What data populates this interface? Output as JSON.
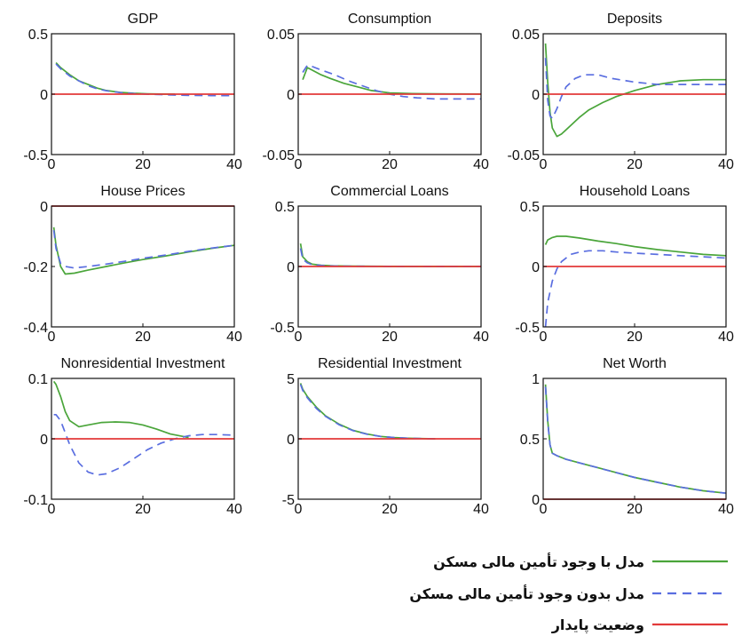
{
  "colors": {
    "with_housing_finance": "#4aa53a",
    "without_housing_finance": "#5a6ee0",
    "steady_state": "#e23a3a",
    "axis": "#111111"
  },
  "legend": {
    "placement": "bottom-right",
    "items": [
      {
        "label": "مدل با وجود تأمین مالی مسکن",
        "style": "solid",
        "color_key": "with_housing_finance"
      },
      {
        "label": "مدل بدون وجود تأمین مالی مسکن",
        "style": "dashed",
        "color_key": "without_housing_finance"
      },
      {
        "label": "وضعیت پایدار",
        "style": "solid",
        "color_key": "steady_state"
      }
    ]
  },
  "chart_data": [
    {
      "type": "line",
      "title": "GDP",
      "xlim": [
        0,
        40
      ],
      "ylim": [
        -0.5,
        0.5
      ],
      "xticks": [
        "0",
        "20",
        "40"
      ],
      "yticks": [
        "0.5",
        "0",
        "-0.5"
      ],
      "ytick_values": [
        0.5,
        0,
        -0.5
      ],
      "series": [
        {
          "color_key": "with_housing_finance",
          "style": "solid",
          "x": [
            1,
            2,
            4,
            6,
            8,
            10,
            12,
            15,
            18,
            21,
            24,
            27
          ],
          "y": [
            0.26,
            0.22,
            0.16,
            0.11,
            0.08,
            0.05,
            0.03,
            0.015,
            0.007,
            0.003,
            0.001,
            0
          ]
        },
        {
          "color_key": "without_housing_finance",
          "style": "dashed",
          "x": [
            1,
            2,
            4,
            6,
            8,
            10,
            12,
            15,
            18,
            21,
            25,
            30,
            35,
            40
          ],
          "y": [
            0.25,
            0.21,
            0.15,
            0.11,
            0.07,
            0.045,
            0.028,
            0.013,
            0.005,
            0,
            -0.005,
            -0.01,
            -0.012,
            -0.012
          ]
        },
        {
          "color_key": "steady_state",
          "style": "solid",
          "x": [
            0,
            40
          ],
          "y": [
            0,
            0
          ]
        }
      ]
    },
    {
      "type": "line",
      "title": "Consumption",
      "xlim": [
        0,
        40
      ],
      "ylim": [
        -0.05,
        0.05
      ],
      "xticks": [
        "0",
        "20",
        "40"
      ],
      "yticks": [
        "0.05",
        "0",
        "-0.05"
      ],
      "ytick_values": [
        0.05,
        0,
        -0.05
      ],
      "series": [
        {
          "color_key": "with_housing_finance",
          "style": "solid",
          "x": [
            1,
            2,
            3,
            5,
            7,
            10,
            13,
            16,
            20,
            25,
            30,
            35,
            40
          ],
          "y": [
            0.012,
            0.022,
            0.02,
            0.016,
            0.013,
            0.009,
            0.006,
            0.003,
            0.001,
            0.0005,
            0.0003,
            0.0002,
            0.0001
          ]
        },
        {
          "color_key": "without_housing_finance",
          "style": "dashed",
          "x": [
            1,
            2,
            3,
            5,
            8,
            11,
            14,
            17,
            20,
            23,
            26,
            30,
            35,
            40
          ],
          "y": [
            0.018,
            0.024,
            0.023,
            0.02,
            0.016,
            0.011,
            0.007,
            0.003,
            0,
            -0.002,
            -0.003,
            -0.004,
            -0.004,
            -0.004
          ]
        },
        {
          "color_key": "steady_state",
          "style": "solid",
          "x": [
            0,
            40
          ],
          "y": [
            0,
            0
          ]
        }
      ]
    },
    {
      "type": "line",
      "title": "Deposits",
      "xlim": [
        0,
        40
      ],
      "ylim": [
        -0.05,
        0.05
      ],
      "xticks": [
        "0",
        "20",
        "40"
      ],
      "yticks": [
        "0.05",
        "0",
        "-0.05"
      ],
      "ytick_values": [
        0.05,
        0,
        -0.05
      ],
      "series": [
        {
          "color_key": "with_housing_finance",
          "style": "solid",
          "x": [
            0.5,
            1,
            1.5,
            2,
            3,
            4,
            6,
            8,
            10,
            13,
            16,
            20,
            25,
            30,
            35,
            40
          ],
          "y": [
            0.042,
            0.01,
            -0.015,
            -0.028,
            -0.035,
            -0.033,
            -0.026,
            -0.019,
            -0.013,
            -0.007,
            -0.002,
            0.003,
            0.008,
            0.011,
            0.012,
            0.012
          ]
        },
        {
          "color_key": "without_housing_finance",
          "style": "dashed",
          "x": [
            0.5,
            1,
            1.5,
            2,
            3,
            4,
            5,
            7,
            9,
            12,
            15,
            20,
            25,
            30,
            35,
            40
          ],
          "y": [
            0.03,
            -0.005,
            -0.018,
            -0.02,
            -0.012,
            -0.002,
            0.006,
            0.013,
            0.016,
            0.016,
            0.013,
            0.01,
            0.008,
            0.008,
            0.008,
            0.008
          ]
        },
        {
          "color_key": "steady_state",
          "style": "solid",
          "x": [
            0,
            40
          ],
          "y": [
            0,
            0
          ]
        }
      ]
    },
    {
      "type": "line",
      "title": "House Prices",
      "xlim": [
        0,
        40
      ],
      "ylim": [
        -0.4,
        0
      ],
      "xticks": [
        "0",
        "20",
        "40"
      ],
      "yticks": [
        "0",
        "-0.2",
        "-0.4"
      ],
      "ytick_values": [
        0,
        -0.2,
        -0.4
      ],
      "series": [
        {
          "color_key": "with_housing_finance",
          "style": "solid",
          "x": [
            0.5,
            1,
            2,
            3,
            5,
            8,
            12,
            16,
            20,
            25,
            30,
            35,
            40
          ],
          "y": [
            -0.07,
            -0.13,
            -0.2,
            -0.225,
            -0.222,
            -0.212,
            -0.2,
            -0.188,
            -0.177,
            -0.165,
            -0.152,
            -0.14,
            -0.13
          ]
        },
        {
          "color_key": "without_housing_finance",
          "style": "dashed",
          "x": [
            0.5,
            1,
            2,
            3,
            5,
            8,
            12,
            16,
            20,
            25,
            30,
            35,
            40
          ],
          "y": [
            -0.08,
            -0.14,
            -0.19,
            -0.2,
            -0.205,
            -0.2,
            -0.192,
            -0.183,
            -0.173,
            -0.162,
            -0.15,
            -0.139,
            -0.13
          ]
        },
        {
          "color_key": "steady_state",
          "style": "solid",
          "x": [
            0,
            40
          ],
          "y": [
            0,
            0
          ]
        }
      ]
    },
    {
      "type": "line",
      "title": "Commercial Loans",
      "xlim": [
        0,
        40
      ],
      "ylim": [
        -0.5,
        0.5
      ],
      "xticks": [
        "0",
        "20",
        "40"
      ],
      "yticks": [
        "0.5",
        "0",
        "-0.5"
      ],
      "ytick_values": [
        0.5,
        0,
        -0.5
      ],
      "series": [
        {
          "color_key": "with_housing_finance",
          "style": "solid",
          "x": [
            0.5,
            1,
            2,
            3,
            5,
            8,
            12,
            20,
            30,
            40
          ],
          "y": [
            0.19,
            0.08,
            0.04,
            0.02,
            0.01,
            0.005,
            0.003,
            0.001,
            0,
            0
          ]
        },
        {
          "color_key": "without_housing_finance",
          "style": "dashed",
          "x": [
            0.5,
            1,
            2,
            3,
            5,
            8,
            12,
            20,
            30,
            40
          ],
          "y": [
            0.15,
            0.06,
            0.03,
            0.015,
            0.008,
            0.004,
            0.002,
            0.001,
            0,
            0
          ]
        },
        {
          "color_key": "steady_state",
          "style": "solid",
          "x": [
            0,
            40
          ],
          "y": [
            0,
            0
          ]
        }
      ]
    },
    {
      "type": "line",
      "title": "Household Loans",
      "xlim": [
        0,
        40
      ],
      "ylim": [
        -0.5,
        0.5
      ],
      "xticks": [
        "0",
        "20",
        "40"
      ],
      "yticks": [
        "0.5",
        "0",
        "-0.5"
      ],
      "ytick_values": [
        0.5,
        0,
        -0.5
      ],
      "series": [
        {
          "color_key": "with_housing_finance",
          "style": "solid",
          "x": [
            0.5,
            1,
            2,
            3,
            5,
            8,
            12,
            16,
            20,
            25,
            30,
            35,
            40
          ],
          "y": [
            0.18,
            0.22,
            0.24,
            0.25,
            0.25,
            0.235,
            0.21,
            0.19,
            0.165,
            0.14,
            0.12,
            0.1,
            0.09
          ]
        },
        {
          "color_key": "without_housing_finance",
          "style": "dashed",
          "x": [
            0.5,
            1,
            2,
            3,
            4,
            6,
            8,
            10,
            13,
            16,
            20,
            25,
            30,
            35,
            40
          ],
          "y": [
            -0.5,
            -0.3,
            -0.12,
            -0.02,
            0.04,
            0.1,
            0.12,
            0.13,
            0.13,
            0.12,
            0.11,
            0.1,
            0.09,
            0.08,
            0.07
          ]
        },
        {
          "color_key": "steady_state",
          "style": "solid",
          "x": [
            0,
            40
          ],
          "y": [
            0,
            0
          ]
        }
      ]
    },
    {
      "type": "line",
      "title": "Nonresidential Investment",
      "xlim": [
        0,
        40
      ],
      "ylim": [
        -0.1,
        0.1
      ],
      "xticks": [
        "0",
        "20",
        "40"
      ],
      "yticks": [
        "0.1",
        "0",
        "-0.1"
      ],
      "ytick_values": [
        0.1,
        0,
        -0.1
      ],
      "series": [
        {
          "color_key": "with_housing_finance",
          "style": "solid",
          "x": [
            0.5,
            1,
            2,
            3,
            4,
            6,
            8,
            11,
            14,
            17,
            20,
            23,
            26,
            30
          ],
          "y": [
            0.095,
            0.09,
            0.07,
            0.045,
            0.03,
            0.02,
            0.023,
            0.027,
            0.028,
            0.027,
            0.023,
            0.016,
            0.008,
            0.002
          ]
        },
        {
          "color_key": "without_housing_finance",
          "style": "dashed",
          "x": [
            0.5,
            1,
            2,
            3,
            4,
            6,
            8,
            10,
            12,
            15,
            18,
            21,
            24,
            27,
            30,
            33,
            36,
            40
          ],
          "y": [
            0.04,
            0.04,
            0.03,
            0.01,
            -0.01,
            -0.04,
            -0.055,
            -0.06,
            -0.058,
            -0.048,
            -0.033,
            -0.018,
            -0.007,
            0,
            0.005,
            0.007,
            0.007,
            0.006
          ]
        },
        {
          "color_key": "steady_state",
          "style": "solid",
          "x": [
            0,
            40
          ],
          "y": [
            0,
            0
          ]
        }
      ]
    },
    {
      "type": "line",
      "title": "Residential Investment",
      "xlim": [
        0,
        40
      ],
      "ylim": [
        -5,
        5
      ],
      "xticks": [
        "0",
        "20",
        "40"
      ],
      "yticks": [
        "5",
        "0",
        "-5"
      ],
      "ytick_values": [
        5,
        0,
        -5
      ],
      "series": [
        {
          "color_key": "with_housing_finance",
          "style": "solid",
          "x": [
            0.5,
            1,
            2,
            4,
            6,
            9,
            12,
            15,
            18,
            21,
            24,
            27,
            30
          ],
          "y": [
            4.6,
            4.1,
            3.5,
            2.6,
            1.9,
            1.2,
            0.7,
            0.4,
            0.2,
            0.1,
            0.05,
            0.02,
            0
          ]
        },
        {
          "color_key": "without_housing_finance",
          "style": "dashed",
          "x": [
            0.5,
            1,
            2,
            4,
            6,
            9,
            12,
            15,
            18,
            21,
            24,
            27,
            30
          ],
          "y": [
            4.5,
            4.0,
            3.4,
            2.5,
            1.85,
            1.15,
            0.68,
            0.38,
            0.2,
            0.1,
            0.05,
            0.02,
            0
          ]
        },
        {
          "color_key": "steady_state",
          "style": "solid",
          "x": [
            0,
            40
          ],
          "y": [
            0,
            0
          ]
        }
      ]
    },
    {
      "type": "line",
      "title": "Net Worth",
      "xlim": [
        0,
        40
      ],
      "ylim": [
        0,
        1
      ],
      "xticks": [
        "0",
        "20",
        "40"
      ],
      "yticks": [
        "1",
        "0.5",
        "0"
      ],
      "ytick_values": [
        1,
        0.5,
        0
      ],
      "series": [
        {
          "color_key": "with_housing_finance",
          "style": "solid",
          "x": [
            0.5,
            1,
            1.5,
            2,
            3,
            5,
            8,
            12,
            16,
            20,
            25,
            30,
            35,
            40
          ],
          "y": [
            0.95,
            0.65,
            0.45,
            0.38,
            0.36,
            0.33,
            0.3,
            0.26,
            0.22,
            0.18,
            0.14,
            0.1,
            0.07,
            0.05
          ]
        },
        {
          "color_key": "without_housing_finance",
          "style": "dashed",
          "x": [
            0.5,
            1,
            1.5,
            2,
            3,
            5,
            8,
            12,
            16,
            20,
            25,
            30,
            35,
            40
          ],
          "y": [
            0.93,
            0.64,
            0.45,
            0.38,
            0.36,
            0.33,
            0.3,
            0.26,
            0.22,
            0.18,
            0.14,
            0.1,
            0.07,
            0.05
          ]
        },
        {
          "color_key": "steady_state",
          "style": "solid",
          "x": [
            0,
            40
          ],
          "y": [
            0,
            0
          ]
        }
      ]
    }
  ]
}
